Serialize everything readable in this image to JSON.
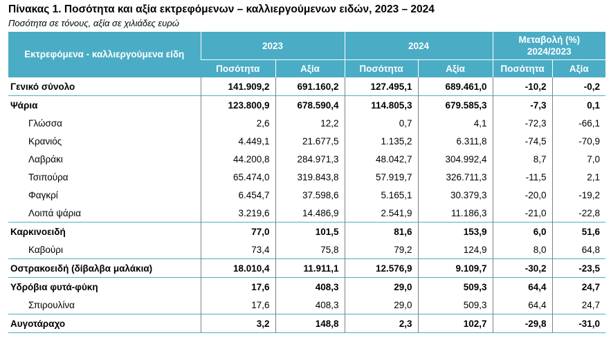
{
  "title": "Πίνακας 1. Ποσότητα και αξία εκτρεφόμενων – καλλιεργούμενων ειδών, 2023 – 2024",
  "subtitle": "Ποσότητα σε τόνους, αξία σε χιλιάδες ευρώ",
  "header": {
    "row_label": "Εκτρεφόμενα - καλλιεργούμενα είδη",
    "year1": "2023",
    "year2": "2024",
    "change_line1": "Μεταβολή (%)",
    "change_line2": "2024/2023",
    "quantity": "Ποσότητα",
    "value": "Αξία"
  },
  "colors": {
    "header_bg": "#4bacc6",
    "header_text": "#ffffff",
    "grid": "#7f7f7f"
  },
  "rows": [
    {
      "label": "Γενικό σύνολο",
      "q2023": "141.909,2",
      "v2023": "691.160,2",
      "q2024": "127.495,1",
      "v2024": "689.461,0",
      "cq": "-10,2",
      "cv": "-0,2"
    },
    {
      "label": "Ψάρια",
      "q2023": "123.800,9",
      "v2023": "678.590,4",
      "q2024": "114.805,3",
      "v2024": "679.585,3",
      "cq": "-7,3",
      "cv": "0,1"
    },
    {
      "label": "Γλώσσα",
      "q2023": "2,6",
      "v2023": "12,2",
      "q2024": "0,7",
      "v2024": "4,1",
      "cq": "-72,3",
      "cv": "-66,1"
    },
    {
      "label": "Κρανιός",
      "q2023": "4.449,1",
      "v2023": "21.677,5",
      "q2024": "1.135,2",
      "v2024": "6.311,8",
      "cq": "-74,5",
      "cv": "-70,9"
    },
    {
      "label": "Λαβράκι",
      "q2023": "44.200,8",
      "v2023": "284.971,3",
      "q2024": "48.042,7",
      "v2024": "304.992,4",
      "cq": "8,7",
      "cv": "7,0"
    },
    {
      "label": "Τσιπούρα",
      "q2023": "65.474,0",
      "v2023": "319.843,8",
      "q2024": "57.919,7",
      "v2024": "326.711,3",
      "cq": "-11,5",
      "cv": "2,1"
    },
    {
      "label": "Φαγκρί",
      "q2023": "6.454,7",
      "v2023": "37.598,6",
      "q2024": "5.165,1",
      "v2024": "30.379,3",
      "cq": "-20,0",
      "cv": "-19,2"
    },
    {
      "label": "Λοιπά ψάρια",
      "q2023": "3.219,6",
      "v2023": "14.486,9",
      "q2024": "2.541,9",
      "v2024": "11.186,3",
      "cq": "-21,0",
      "cv": "-22,8"
    },
    {
      "label": "Καρκινοειδή",
      "q2023": "77,0",
      "v2023": "101,5",
      "q2024": "81,6",
      "v2024": "153,9",
      "cq": "6,0",
      "cv": "51,6"
    },
    {
      "label": "Καβούρι",
      "q2023": "73,4",
      "v2023": "75,8",
      "q2024": "79,2",
      "v2024": "124,9",
      "cq": "8,0",
      "cv": "64,8"
    },
    {
      "label": "Οστρακοειδή (δίβαλβα μαλάκια)",
      "q2023": "18.010,4",
      "v2023": "11.911,1",
      "q2024": "12.576,9",
      "v2024": "9.109,7",
      "cq": "-30,2",
      "cv": "-23,5"
    },
    {
      "label": "Υδρόβια φυτά-φύκη",
      "q2023": "17,6",
      "v2023": "408,3",
      "q2024": "29,0",
      "v2024": "509,3",
      "cq": "64,4",
      "cv": "24,7"
    },
    {
      "label": "Σπιρουλίνα",
      "q2023": "17,6",
      "v2023": "408,3",
      "q2024": "29,0",
      "v2024": "509,3",
      "cq": "64,4",
      "cv": "24,7"
    },
    {
      "label": "Αυγοτάραχο",
      "q2023": "3,2",
      "v2023": "148,8",
      "q2024": "2,3",
      "v2024": "102,7",
      "cq": "-29,8",
      "cv": "-31,0"
    }
  ]
}
